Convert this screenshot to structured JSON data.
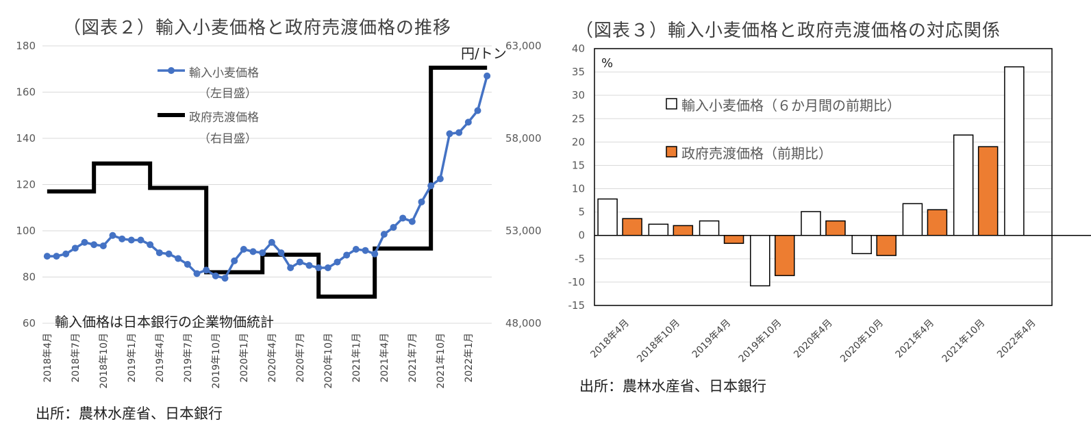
{
  "left": {
    "title": "（図表２）輸入小麦価格と政府売渡価格の推移",
    "unit_right": "円/トン",
    "note": "輸入価格は日本銀行の企業物価統計",
    "source": "出所：農林水産省、日本銀行",
    "colors": {
      "import": "#4472c4",
      "gov": "#000000"
    },
    "chart_data": {
      "type": "line",
      "x_tick_labels": [
        "2018年4月",
        "2018年7月",
        "2018年10月",
        "2019年1月",
        "2019年4月",
        "2019年7月",
        "2019年10月",
        "2020年1月",
        "2020年4月",
        "2020年7月",
        "2020年10月",
        "2021年1月",
        "2021年4月",
        "2021年7月",
        "2021年10月",
        "2022年1月"
      ],
      "x_months": [
        "2018-04",
        "2018-05",
        "2018-06",
        "2018-07",
        "2018-08",
        "2018-09",
        "2018-10",
        "2018-11",
        "2018-12",
        "2019-01",
        "2019-02",
        "2019-03",
        "2019-04",
        "2019-05",
        "2019-06",
        "2019-07",
        "2019-08",
        "2019-09",
        "2019-10",
        "2019-11",
        "2019-12",
        "2020-01",
        "2020-02",
        "2020-03",
        "2020-04",
        "2020-05",
        "2020-06",
        "2020-07",
        "2020-08",
        "2020-09",
        "2020-10",
        "2020-11",
        "2020-12",
        "2021-01",
        "2021-02",
        "2021-03",
        "2021-04",
        "2021-05",
        "2021-06",
        "2021-07",
        "2021-08",
        "2021-09",
        "2021-10",
        "2021-11",
        "2021-12",
        "2022-01",
        "2022-02",
        "2022-03"
      ],
      "y_left": {
        "ylim": [
          60,
          180
        ],
        "ticks": [
          60,
          80,
          100,
          120,
          140,
          160,
          180
        ]
      },
      "y_right": {
        "ylim": [
          48000,
          63000
        ],
        "ticks": [
          "48,000",
          "53,000",
          "58,000",
          "63,000"
        ]
      },
      "grid": true,
      "legend_position": "top-center",
      "series": [
        {
          "name": "輸入小麦価格",
          "axis_note": "（左目盛）",
          "axis": "left",
          "marker": "circle",
          "values": [
            89,
            89,
            90,
            92.5,
            95,
            94,
            93.5,
            98,
            96.5,
            96,
            96,
            94,
            90.5,
            90,
            88,
            85.5,
            81.5,
            83,
            80.5,
            79.5,
            87,
            92,
            91,
            90.5,
            95,
            90.5,
            84,
            86.5,
            85,
            84,
            84,
            86.5,
            89.5,
            92,
            91.5,
            90,
            98.5,
            101.5,
            105.5,
            104,
            112.5,
            119.5,
            122.5,
            142,
            142.5,
            147,
            152,
            167
          ]
        },
        {
          "name": "政府売渡価格",
          "axis_note": "（右目盛）",
          "axis": "right",
          "step": true,
          "steps": [
            {
              "from": "2018-04",
              "value": 55130
            },
            {
              "from": "2018-10",
              "value": 56640
            },
            {
              "from": "2019-04",
              "value": 55320
            },
            {
              "from": "2019-10",
              "value": 50760
            },
            {
              "from": "2020-04",
              "value": 51710
            },
            {
              "from": "2020-10",
              "value": 49440
            },
            {
              "from": "2021-04",
              "value": 52040
            },
            {
              "from": "2021-10",
              "value": 61820
            }
          ]
        }
      ]
    }
  },
  "right": {
    "title": "（図表３）輸入小麦価格と政府売渡価格の対応関係",
    "unit": "%",
    "source": "出所：農林水産省、日本銀行",
    "colors": {
      "import": "#ffffff",
      "gov": "#ed7d31",
      "border": "#000000"
    },
    "chart_data": {
      "type": "bar",
      "categories": [
        "2018年4月",
        "2018年10月",
        "2019年4月",
        "2019年10月",
        "2020年4月",
        "2020年10月",
        "2021年4月",
        "2021年10月",
        "2022年4月"
      ],
      "ylim": [
        -15,
        40
      ],
      "y_ticks": [
        -15,
        -10,
        -5,
        0,
        5,
        10,
        15,
        20,
        25,
        30,
        35,
        40
      ],
      "grid": true,
      "legend_position": "top-center",
      "series": [
        {
          "name": "輸入小麦価格（６か月間の前期比）",
          "values": [
            7.8,
            2.4,
            3.1,
            -10.8,
            5.1,
            -3.9,
            6.8,
            21.5,
            36.1
          ]
        },
        {
          "name": "政府売渡価格（前期比）",
          "values": [
            3.6,
            2.1,
            -1.7,
            -8.6,
            3.1,
            -4.3,
            5.5,
            19.0,
            null
          ]
        }
      ]
    }
  }
}
